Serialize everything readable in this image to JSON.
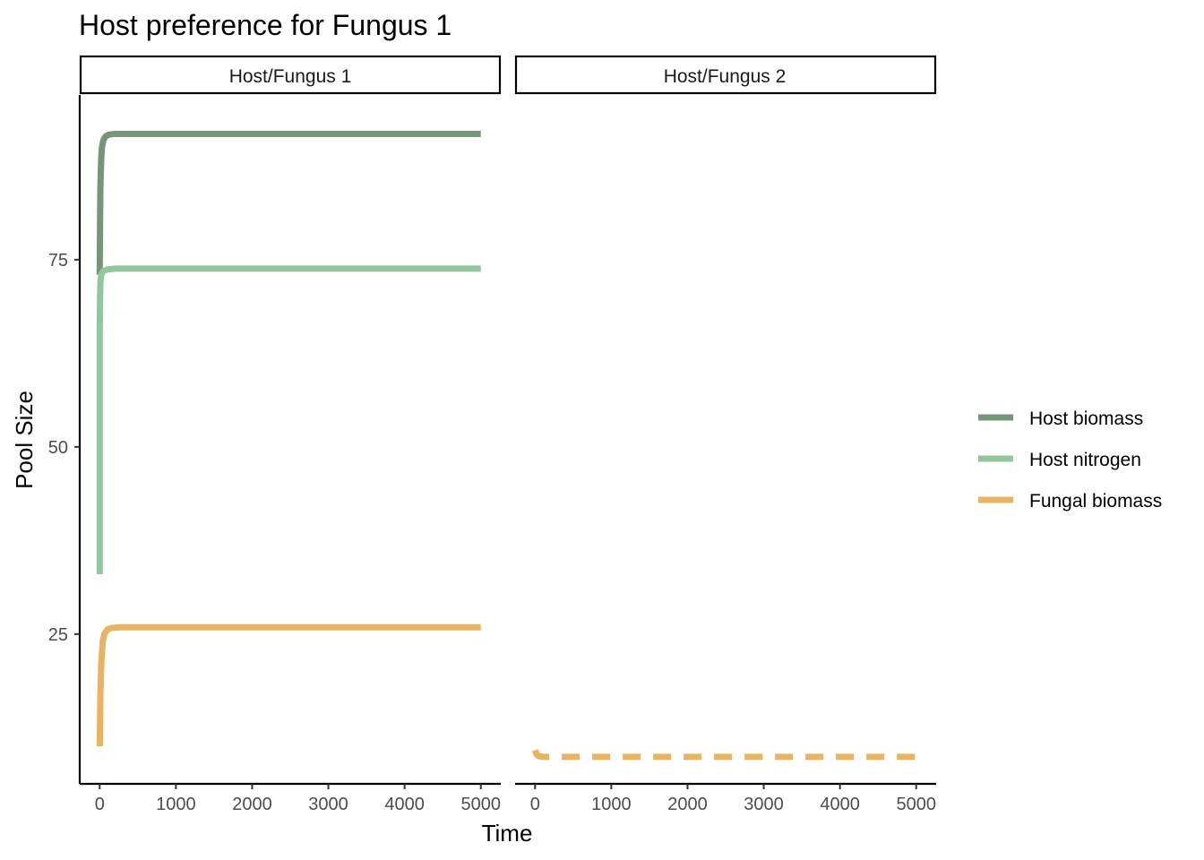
{
  "chart_data": {
    "type": "line",
    "title": "Host preference for Fungus 1",
    "xlabel": "Time",
    "ylabel": "Pool Size",
    "xlim": [
      -250,
      5250
    ],
    "ylim": [
      5,
      97
    ],
    "x_ticks": [
      0,
      1000,
      2000,
      3000,
      4000,
      5000
    ],
    "y_ticks": [
      25,
      50,
      75
    ],
    "grid": false,
    "legend_position": "right",
    "colors": {
      "host_biomass": "#779679",
      "host_nitrogen": "#93c69d",
      "fungal_biomass": "#e8b462"
    },
    "legend": [
      {
        "label": "Host biomass",
        "color": "#779679",
        "dashed": false
      },
      {
        "label": "Host nitrogen",
        "color": "#93c69d",
        "dashed": false
      },
      {
        "label": "Fungal biomass",
        "color": "#e8b462",
        "dashed": false
      }
    ],
    "panels": [
      {
        "strip": "Host/Fungus 1",
        "series": [
          {
            "name": "Host biomass",
            "color": "#779679",
            "dashed": false,
            "x": [
              0,
              5,
              10,
              20,
              30,
              50,
              80,
              120,
              200,
              5000
            ],
            "y": [
              73,
              80,
              85,
              88.5,
              90,
              91,
              91.5,
              91.7,
              91.8,
              91.8
            ]
          },
          {
            "name": "Host nitrogen",
            "color": "#93c69d",
            "dashed": false,
            "x": [
              0,
              0,
              5,
              10,
              20,
              50,
              100,
              200,
              5000
            ],
            "y": [
              33,
              66,
              70,
              72,
              73,
              73.5,
              73.7,
              73.8,
              73.8
            ]
          },
          {
            "name": "Fungal biomass",
            "color": "#e8b462",
            "dashed": false,
            "x": [
              0,
              10,
              20,
              40,
              60,
              100,
              150,
              250,
              5000
            ],
            "y": [
              10,
              17,
              21,
              24,
              25,
              25.6,
              25.8,
              25.9,
              25.9
            ]
          }
        ]
      },
      {
        "strip": "Host/Fungus 2",
        "series": [
          {
            "name": "Fungal biomass",
            "color": "#e8b462",
            "dashed": true,
            "x": [
              0,
              20,
              50,
              100,
              5000
            ],
            "y": [
              9.5,
              8.9,
              8.7,
              8.6,
              8.6
            ]
          }
        ]
      }
    ]
  }
}
